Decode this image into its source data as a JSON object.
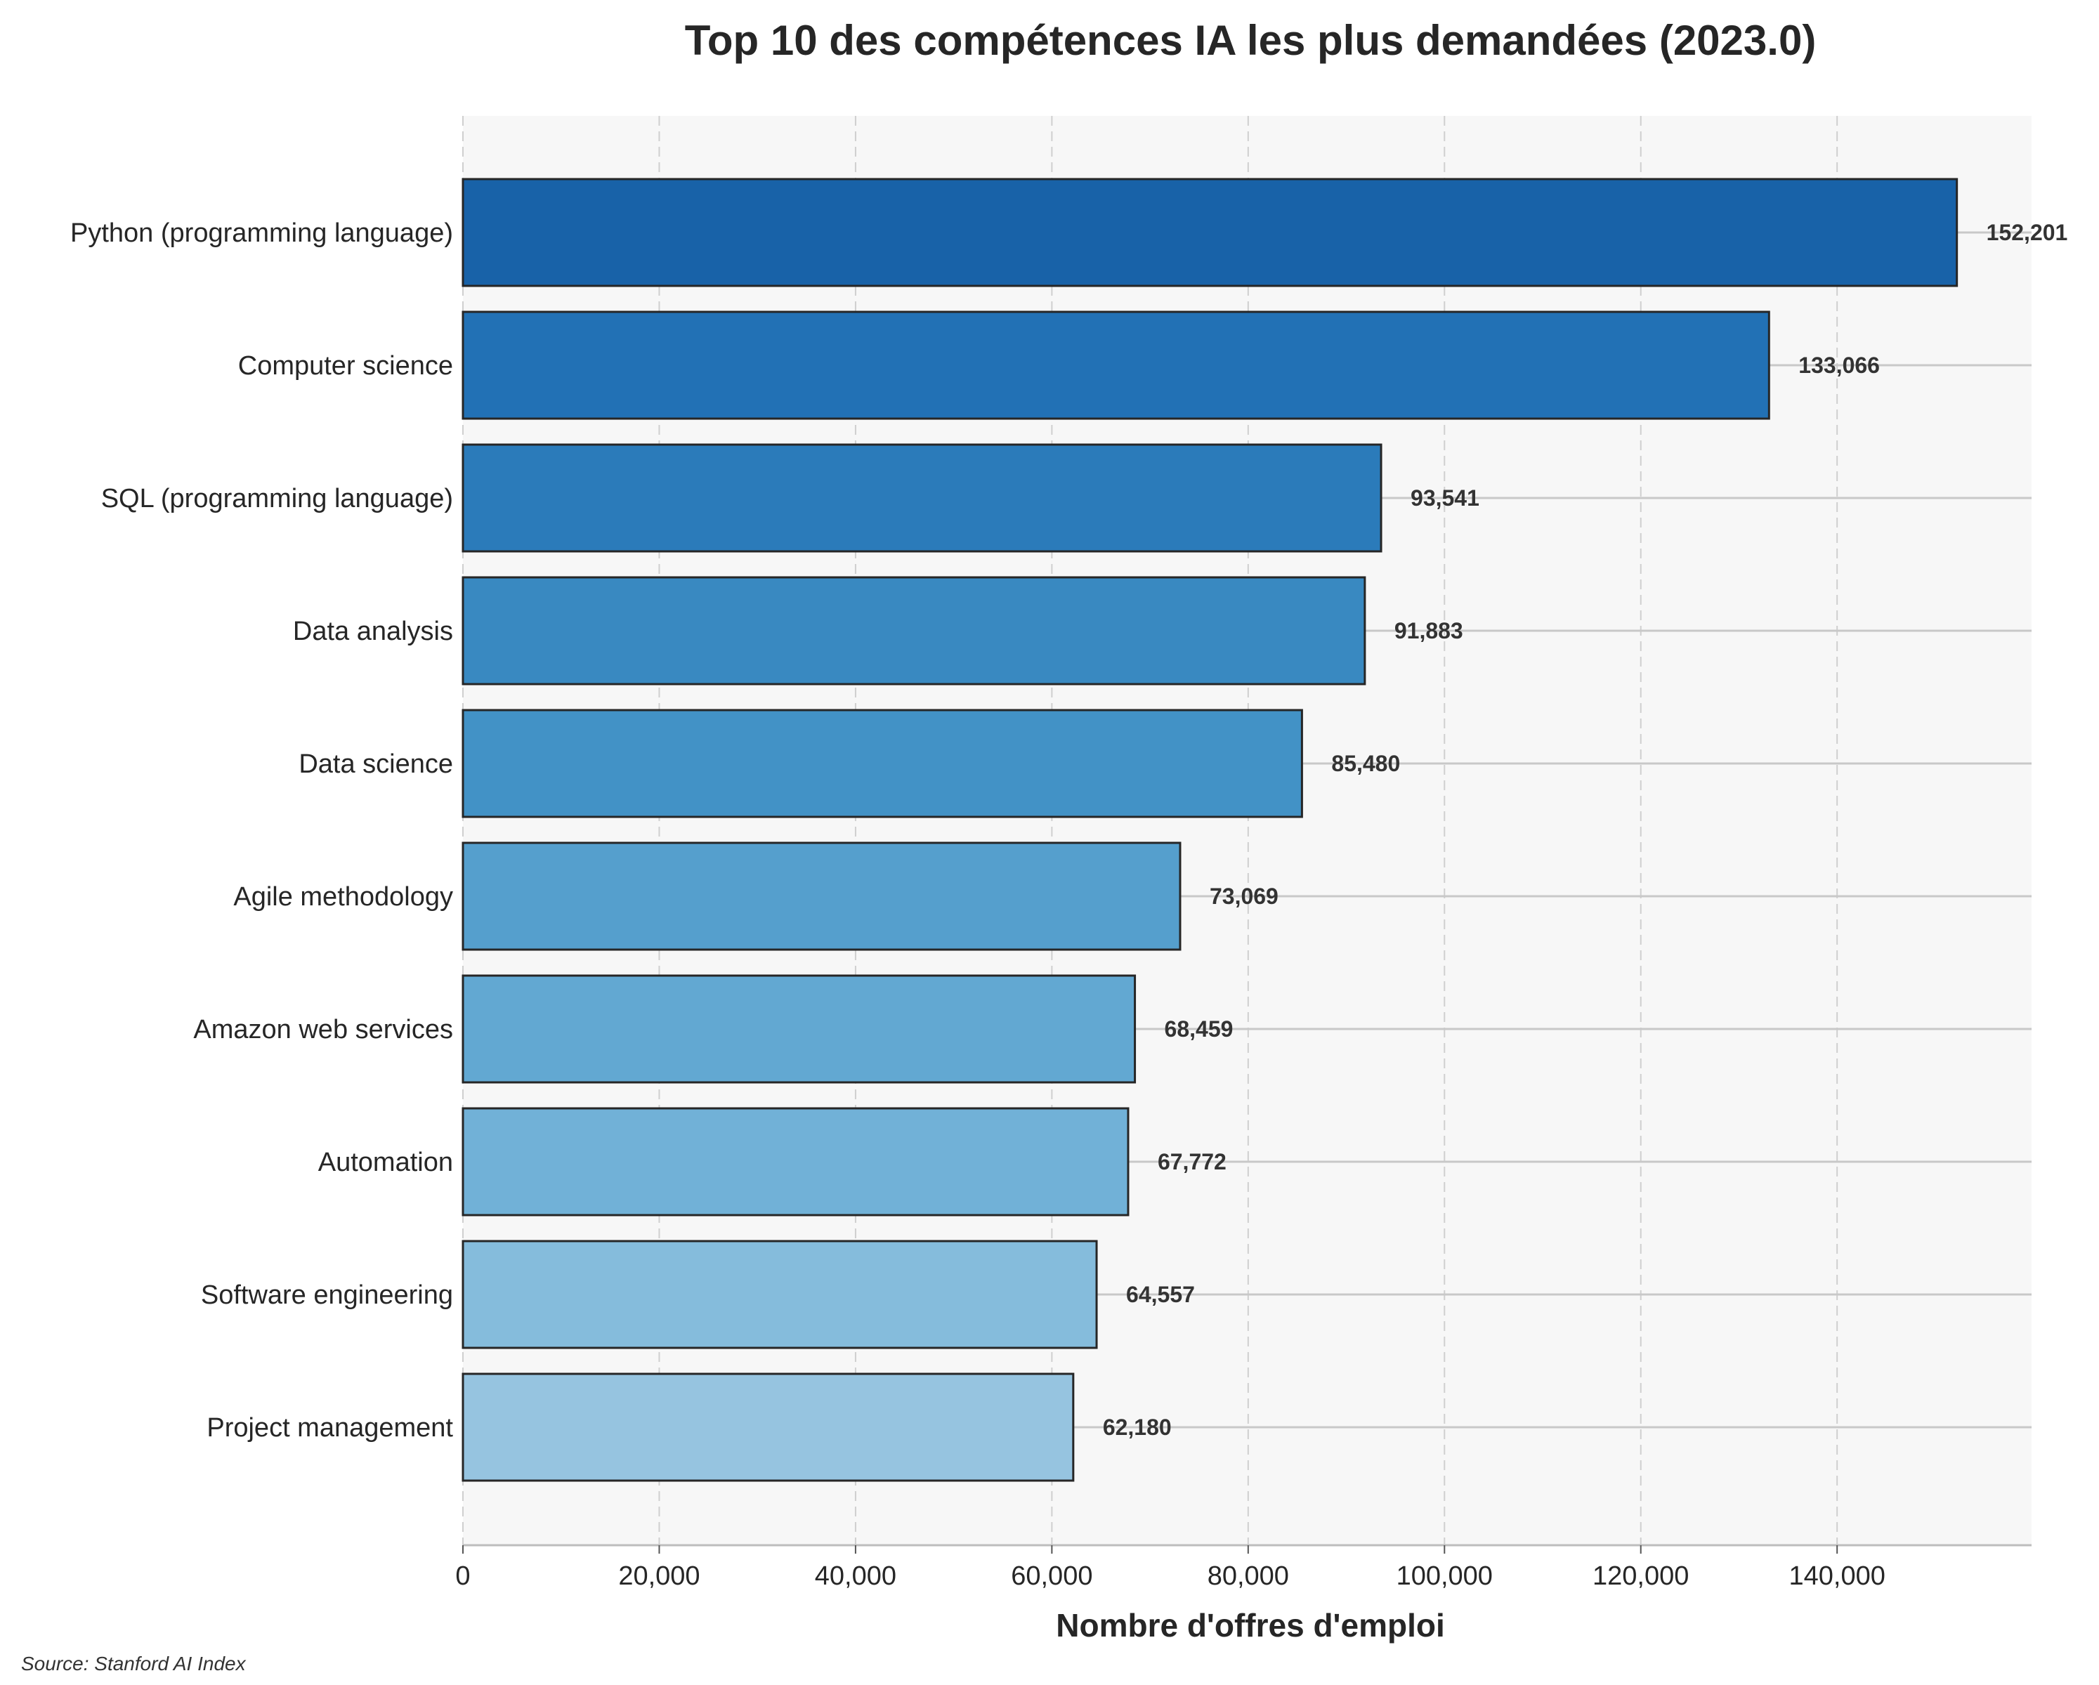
{
  "chart_data": {
    "type": "bar",
    "orientation": "horizontal",
    "title": "Top 10 des compétences IA les plus demandées (2023.0)",
    "xlabel": "Nombre d'offres d'emploi",
    "ylabel": "",
    "source": "Source: Stanford AI Index",
    "categories": [
      "Python (programming language)",
      "Computer science",
      "SQL (programming language)",
      "Data analysis",
      "Data science",
      "Agile methodology",
      "Amazon web services",
      "Automation",
      "Software engineering",
      "Project management"
    ],
    "values": [
      152201,
      133066,
      93541,
      91883,
      85480,
      73069,
      68459,
      67772,
      64557,
      62180
    ],
    "value_labels": [
      "152,201",
      "133,066",
      "93,541",
      "91,883",
      "85,480",
      "73,069",
      "68,459",
      "67,772",
      "64,557",
      "62,180"
    ],
    "xlim": [
      0,
      159811
    ],
    "xticks": [
      0,
      20000,
      40000,
      60000,
      80000,
      100000,
      120000,
      140000
    ],
    "xtick_labels": [
      "0",
      "20,000",
      "40,000",
      "60,000",
      "80,000",
      "100,000",
      "120,000",
      "140,000"
    ],
    "colors": [
      "#1862a8",
      "#2271b5",
      "#2b7bba",
      "#3989c1",
      "#4292c6",
      "#559fcd",
      "#62a8d2",
      "#71b1d7",
      "#85bcdc",
      "#96c4e0"
    ],
    "bar_edge_color": "#262626",
    "plot_background": "#f7f7f7",
    "grid": true,
    "legend": "none"
  }
}
